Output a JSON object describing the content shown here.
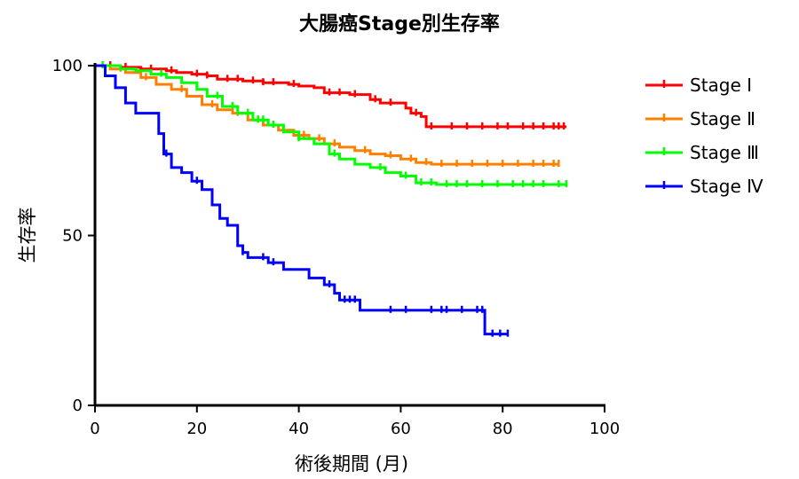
{
  "chart_data": {
    "type": "line",
    "subtype": "kaplan-meier step",
    "title": "大腸癌Stage別生存率",
    "xlabel": "術後期間 (月)",
    "ylabel": "生存率",
    "xlim": [
      0,
      100
    ],
    "ylim": [
      0,
      100
    ],
    "xticks": [
      "0",
      "20",
      "40",
      "60",
      "80",
      "100"
    ],
    "yticks": [
      "0",
      "50",
      "100"
    ],
    "grid": false,
    "legend_position": "right",
    "series": [
      {
        "name": "Stage Ⅰ",
        "color": "#ff0000",
        "x": [
          0,
          2,
          5,
          9,
          14,
          16,
          19,
          22,
          24,
          29,
          33,
          38,
          40,
          43,
          45,
          50,
          54,
          56,
          61,
          62,
          64,
          65,
          67,
          92.5
        ],
        "y": [
          100,
          100,
          99.5,
          99,
          98.5,
          98,
          97.5,
          97,
          96,
          95.5,
          95,
          94.5,
          94,
          93.5,
          92,
          91.5,
          90,
          89,
          87.5,
          86,
          85,
          82,
          82,
          82
        ],
        "censored_x": [
          3,
          6,
          11,
          15,
          20,
          22,
          26,
          28,
          31,
          33,
          35,
          39,
          46,
          48,
          51,
          55,
          58,
          63,
          66,
          70,
          73,
          76,
          79,
          81,
          84,
          86,
          88,
          90,
          91,
          92
        ]
      },
      {
        "name": "Stage Ⅱ",
        "color": "#ff8000",
        "x": [
          0,
          3,
          6,
          9,
          12,
          15,
          18,
          21,
          24,
          27,
          30,
          33,
          36,
          39,
          42,
          45,
          48,
          51,
          54,
          57,
          60,
          63,
          66,
          70,
          91
        ],
        "y": [
          100,
          99,
          98,
          96.5,
          94.5,
          93,
          91,
          88.5,
          87,
          86,
          84,
          82.5,
          81,
          79.5,
          78.5,
          77,
          76,
          75,
          74,
          73.5,
          72.5,
          71.5,
          71,
          71,
          71
        ],
        "censored_x": [
          5,
          10,
          17,
          23,
          28,
          32,
          37,
          41,
          44,
          47,
          53,
          58,
          62,
          65,
          68,
          71,
          74,
          77,
          80,
          83,
          86,
          88,
          90,
          91
        ]
      },
      {
        "name": "Stage Ⅲ",
        "color": "#00ff00",
        "x": [
          0,
          2,
          5,
          8,
          11,
          14,
          17,
          20,
          22,
          25,
          28,
          31,
          34,
          37,
          40,
          43,
          46,
          48,
          51,
          54,
          57,
          60,
          63,
          67,
          92.5
        ],
        "y": [
          100,
          100,
          99,
          98.5,
          97.5,
          96.5,
          95,
          93,
          91,
          88,
          86,
          84,
          82.5,
          80.5,
          78.5,
          77,
          74,
          72.5,
          71,
          70,
          68.5,
          67.5,
          65.5,
          65,
          65
        ],
        "censored_x": [
          1.5,
          13,
          24,
          27,
          30,
          32,
          33,
          35,
          40,
          47,
          56,
          61,
          64,
          66,
          69,
          71,
          73,
          76,
          79,
          82,
          84,
          86,
          88,
          91,
          92.5
        ]
      },
      {
        "name": "Stage Ⅳ",
        "color": "#0000ff",
        "x": [
          0,
          2,
          4,
          6,
          8,
          11,
          12.5,
          13.5,
          15,
          17,
          19,
          21,
          23,
          24.5,
          26,
          28,
          29,
          30,
          34,
          37,
          42,
          45,
          47,
          48,
          52,
          63,
          70,
          76.5,
          81
        ],
        "y": [
          100,
          97,
          93.5,
          89,
          86,
          86,
          80,
          74,
          70,
          68.5,
          66,
          63.5,
          59,
          55,
          53,
          47,
          45,
          43.5,
          42,
          40,
          37.5,
          35.5,
          33,
          31,
          28,
          28,
          28,
          21,
          21
        ],
        "censored_x": [
          14,
          20,
          29,
          33,
          35,
          46,
          49,
          50,
          51,
          58,
          61,
          66,
          68,
          69,
          72,
          75,
          76,
          78,
          79.5,
          81
        ]
      }
    ]
  }
}
